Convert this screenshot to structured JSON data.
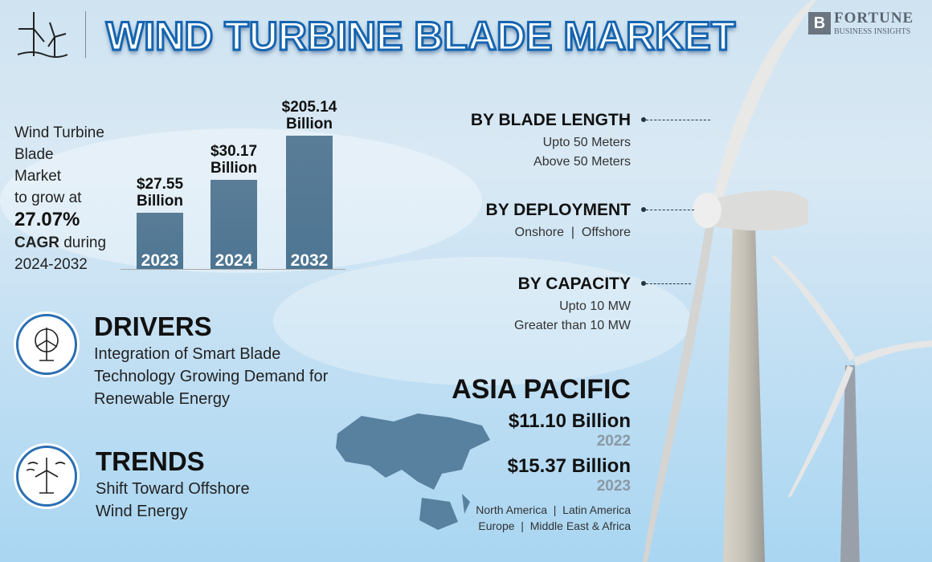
{
  "header": {
    "title": "WIND TURBINE BLADE MARKET",
    "logo_line1": "FORTUNE",
    "logo_line2": "BUSINESS INSIGHTS",
    "logo_mark": "B"
  },
  "intro": {
    "line1": "Wind Turbine",
    "line2": "Blade",
    "line3": "Market",
    "line4": "to grow at",
    "cagr": "27.07%",
    "cagr_label": "CAGR",
    "during": " during",
    "period": "2024-2032"
  },
  "chart_data": {
    "type": "bar",
    "categories": [
      "2023",
      "2024",
      "2032"
    ],
    "values": [
      27.55,
      30.17,
      205.14
    ],
    "unit": "Billion",
    "data_labels": [
      [
        "$27.55",
        "Billion"
      ],
      [
        "$30.17",
        "Billion"
      ],
      [
        "$205.14",
        "Billion"
      ]
    ],
    "color": "#52799a"
  },
  "drivers": {
    "title": "DRIVERS",
    "text": "Integration of Smart Blade Technology Growing Demand for Renewable Energy",
    "icon": "wind-turbine-gear-icon"
  },
  "trends": {
    "title": "TRENDS",
    "text": "Shift Toward Offshore Wind Energy",
    "icon": "wind-turbine-icon"
  },
  "segments": [
    {
      "title": "BY BLADE LENGTH",
      "items": [
        "Upto 50 Meters",
        "Above 50 Meters"
      ]
    },
    {
      "title": "BY DEPLOYMENT",
      "items": [
        "Onshore  |  Offshore"
      ]
    },
    {
      "title": "BY CAPACITY",
      "items": [
        "Upto 10 MW",
        "Greater than 10 MW"
      ]
    }
  ],
  "region": {
    "name": "ASIA PACIFIC",
    "value1": "$11.10 Billion",
    "year1": "2022",
    "value2": "$15.37 Billion",
    "year2": "2023",
    "others1": "North America  |  Latin America",
    "others2": "Europe  |  Middle East & Africa"
  },
  "colors": {
    "accent": "#2b6fb3",
    "bar": "#52799a",
    "year_gray": "#8a98a3"
  }
}
